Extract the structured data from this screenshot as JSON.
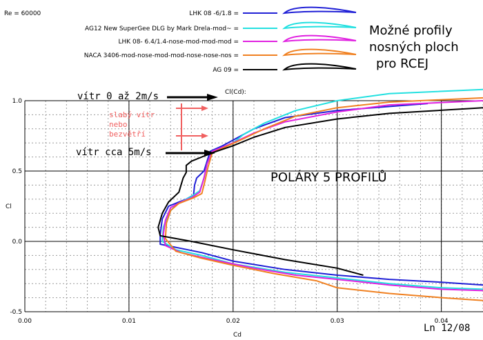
{
  "chart_data": {
    "type": "line",
    "re_label": "Re = 60000",
    "title_lines": [
      "Možné profily",
      "nosných ploch",
      "pro RCEJ"
    ],
    "ylabel_top": "Cl(Cd):",
    "ylabel": "Cl",
    "xlabel": "Cd",
    "xlim": [
      0,
      0.044
    ],
    "ylim": [
      -0.5,
      1.0
    ],
    "x_ticks": [
      "0.00",
      "0.01",
      "0.02",
      "0.03",
      "0.04"
    ],
    "y_ticks": [
      "1.0",
      "0.5",
      "0.0",
      "-0.5"
    ],
    "grid": true,
    "legend_position": "top",
    "annotations": {
      "wind1": "vítr  0 až 2m/s",
      "wind2": "vítr cca  5m/s",
      "weak_wind": [
        "slabý vítr",
        "nebo",
        "bezvětří"
      ],
      "polars": "POLÁRY  5 PROFILŮ",
      "sign": "Ln 12/08"
    },
    "series": [
      {
        "name": "LHK 08 -6/1.8 =",
        "color": "#1f1fd6",
        "points": [
          [
            0.0387,
            0.98
          ],
          [
            0.03,
            0.93
          ],
          [
            0.025,
            0.88
          ],
          [
            0.022,
            0.8
          ],
          [
            0.02,
            0.72
          ],
          [
            0.019,
            0.68
          ],
          [
            0.0178,
            0.64
          ],
          [
            0.0172,
            0.5
          ],
          [
            0.0165,
            0.45
          ],
          [
            0.0163,
            0.4
          ],
          [
            0.0162,
            0.33
          ],
          [
            0.0155,
            0.3
          ],
          [
            0.0148,
            0.28
          ],
          [
            0.0138,
            0.25
          ],
          [
            0.0132,
            0.16
          ],
          [
            0.013,
            0.05
          ],
          [
            0.013,
            -0.02
          ],
          [
            0.015,
            -0.05
          ],
          [
            0.017,
            -0.08
          ],
          [
            0.02,
            -0.14
          ],
          [
            0.025,
            -0.2
          ],
          [
            0.03,
            -0.24
          ],
          [
            0.035,
            -0.27
          ],
          [
            0.04,
            -0.29
          ],
          [
            0.044,
            -0.31
          ]
        ]
      },
      {
        "name": "AG12 New SuperGee DLG by Mark Drela-mod~ =",
        "color": "#22e0e0",
        "points": [
          [
            0.044,
            1.08
          ],
          [
            0.035,
            1.05
          ],
          [
            0.03,
            1.0
          ],
          [
            0.026,
            0.93
          ],
          [
            0.023,
            0.84
          ],
          [
            0.021,
            0.76
          ],
          [
            0.02,
            0.7
          ],
          [
            0.018,
            0.64
          ],
          [
            0.0175,
            0.55
          ],
          [
            0.0172,
            0.45
          ],
          [
            0.0168,
            0.36
          ],
          [
            0.016,
            0.32
          ],
          [
            0.0145,
            0.26
          ],
          [
            0.0138,
            0.2
          ],
          [
            0.0133,
            0.1
          ],
          [
            0.0132,
            0.0
          ],
          [
            0.0145,
            -0.06
          ],
          [
            0.017,
            -0.1
          ],
          [
            0.02,
            -0.16
          ],
          [
            0.025,
            -0.22
          ],
          [
            0.03,
            -0.26
          ],
          [
            0.035,
            -0.3
          ],
          [
            0.04,
            -0.33
          ],
          [
            0.044,
            -0.34
          ]
        ]
      },
      {
        "name": "LHK  08- 6.4/1.4-nose-mod-mod-mod =",
        "color": "#e020e0",
        "points": [
          [
            0.044,
            1.0
          ],
          [
            0.035,
            0.97
          ],
          [
            0.03,
            0.92
          ],
          [
            0.025,
            0.85
          ],
          [
            0.022,
            0.77
          ],
          [
            0.02,
            0.7
          ],
          [
            0.018,
            0.64
          ],
          [
            0.0175,
            0.55
          ],
          [
            0.0172,
            0.45
          ],
          [
            0.0168,
            0.35
          ],
          [
            0.016,
            0.31
          ],
          [
            0.015,
            0.28
          ],
          [
            0.014,
            0.24
          ],
          [
            0.0135,
            0.15
          ],
          [
            0.0133,
            0.05
          ],
          [
            0.0135,
            -0.03
          ],
          [
            0.015,
            -0.08
          ],
          [
            0.018,
            -0.13
          ],
          [
            0.022,
            -0.19
          ],
          [
            0.026,
            -0.24
          ],
          [
            0.03,
            -0.27
          ],
          [
            0.035,
            -0.31
          ],
          [
            0.04,
            -0.34
          ],
          [
            0.044,
            -0.35
          ]
        ]
      },
      {
        "name": "NACA 3406-mod-nose-mod-mod-nose-nose-nos =",
        "color": "#f08020",
        "points": [
          [
            0.044,
            1.02
          ],
          [
            0.035,
            0.99
          ],
          [
            0.03,
            0.95
          ],
          [
            0.026,
            0.89
          ],
          [
            0.023,
            0.8
          ],
          [
            0.021,
            0.73
          ],
          [
            0.0195,
            0.68
          ],
          [
            0.018,
            0.63
          ],
          [
            0.0176,
            0.53
          ],
          [
            0.0173,
            0.43
          ],
          [
            0.017,
            0.34
          ],
          [
            0.0162,
            0.31
          ],
          [
            0.0148,
            0.27
          ],
          [
            0.014,
            0.22
          ],
          [
            0.0136,
            0.13
          ],
          [
            0.0135,
            0.02
          ],
          [
            0.0145,
            -0.07
          ],
          [
            0.017,
            -0.12
          ],
          [
            0.02,
            -0.17
          ],
          [
            0.024,
            -0.23
          ],
          [
            0.028,
            -0.28
          ],
          [
            0.03,
            -0.33
          ],
          [
            0.035,
            -0.37
          ],
          [
            0.04,
            -0.4
          ],
          [
            0.044,
            -0.42
          ]
        ]
      },
      {
        "name": "AG 09 =",
        "color": "#000000",
        "points": [
          [
            0.044,
            0.95
          ],
          [
            0.035,
            0.91
          ],
          [
            0.03,
            0.87
          ],
          [
            0.025,
            0.81
          ],
          [
            0.022,
            0.74
          ],
          [
            0.02,
            0.68
          ],
          [
            0.018,
            0.63
          ],
          [
            0.016,
            0.57
          ],
          [
            0.0155,
            0.54
          ],
          [
            0.0155,
            0.49
          ],
          [
            0.0152,
            0.45
          ],
          [
            0.0148,
            0.35
          ],
          [
            0.0138,
            0.28
          ],
          [
            0.0132,
            0.2
          ],
          [
            0.0128,
            0.1
          ],
          [
            0.013,
            0.04
          ],
          [
            0.016,
            0.0
          ],
          [
            0.02,
            -0.06
          ],
          [
            0.025,
            -0.13
          ],
          [
            0.03,
            -0.19
          ],
          [
            0.0325,
            -0.24
          ]
        ]
      }
    ]
  }
}
